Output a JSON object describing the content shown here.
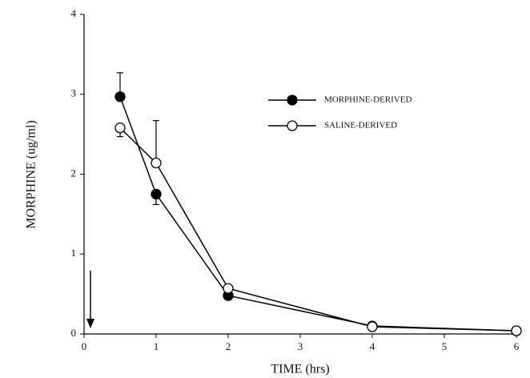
{
  "chart_data": {
    "type": "line",
    "x_label": "TIME (hrs)",
    "y_label": "MORPHINE (ug/ml)",
    "x": [
      0.5,
      1,
      2,
      4,
      6
    ],
    "series": [
      {
        "name": "MORPHINE-DERIVED",
        "color": "#000000",
        "marker": "filled",
        "values": [
          2.97,
          1.75,
          0.48,
          0.1,
          0.04
        ],
        "errors": [
          0.3,
          0.13,
          null,
          null,
          null
        ]
      },
      {
        "name": "SALINE-DERIVED",
        "color": "#000000",
        "marker": "open",
        "values": [
          2.58,
          2.14,
          0.57,
          0.09,
          0.04
        ],
        "errors": [
          0.11,
          0.53,
          null,
          null,
          null
        ]
      }
    ],
    "xlim": [
      0,
      6
    ],
    "xticks": [
      0,
      1,
      2,
      3,
      4,
      5,
      6
    ],
    "ylim": [
      0,
      4
    ],
    "yticks": [
      0,
      1,
      2,
      3,
      4
    ],
    "grid": false,
    "legend": "upper right"
  }
}
